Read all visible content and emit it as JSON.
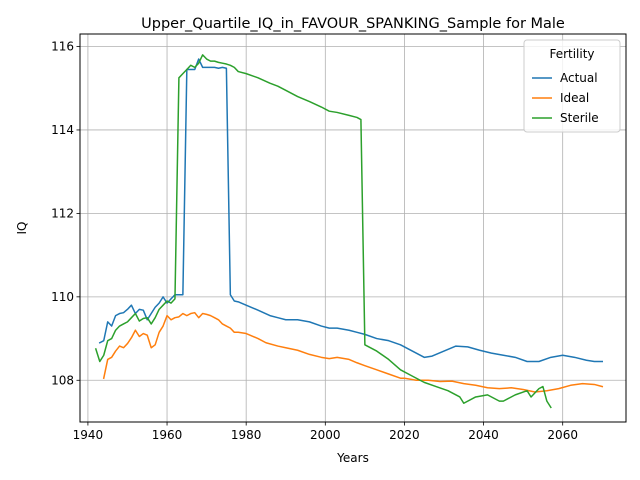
{
  "chart_data": {
    "type": "line",
    "title": "Upper_Quartile_IQ_in_FAVOUR_SPANKING_Sample for Male",
    "xlabel": "Years",
    "ylabel": "IQ",
    "xlim": [
      1938,
      2076
    ],
    "ylim": [
      107.0,
      116.3
    ],
    "xticks": [
      1940,
      1960,
      1980,
      2000,
      2020,
      2040,
      2060
    ],
    "yticks": [
      108,
      110,
      112,
      114,
      116
    ],
    "xtick_labels": [
      "1940",
      "1960",
      "1980",
      "2000",
      "2020",
      "2040",
      "2060"
    ],
    "ytick_labels": [
      "108",
      "110",
      "112",
      "114",
      "116"
    ],
    "grid": true,
    "legend": {
      "title": "Fertility",
      "position": "top-right"
    },
    "series": [
      {
        "name": "Actual",
        "color": "#1f77b4",
        "x": [
          1943,
          1944,
          1945,
          1946,
          1947,
          1948,
          1949,
          1950,
          1951,
          1952,
          1953,
          1954,
          1955,
          1956,
          1957,
          1958,
          1959,
          1960,
          1961,
          1962,
          1963,
          1964,
          1965,
          1966,
          1967,
          1968,
          1969,
          1970,
          1971,
          1972,
          1973,
          1974,
          1975,
          1976,
          1977,
          1978,
          1980,
          1983,
          1986,
          1988,
          1990,
          1993,
          1996,
          1999,
          2001,
          2003,
          2006,
          2008,
          2010,
          2013,
          2016,
          2019,
          2022,
          2025,
          2027,
          2030,
          2033,
          2036,
          2039,
          2042,
          2045,
          2048,
          2051,
          2054,
          2057,
          2060,
          2063,
          2066,
          2068,
          2070
        ],
        "y": [
          108.9,
          108.95,
          109.4,
          109.3,
          109.55,
          109.6,
          109.62,
          109.7,
          109.8,
          109.6,
          109.7,
          109.68,
          109.45,
          109.6,
          109.75,
          109.85,
          110.0,
          109.85,
          109.95,
          110.05,
          110.05,
          110.05,
          115.45,
          115.45,
          115.45,
          115.7,
          115.5,
          115.5,
          115.5,
          115.5,
          115.48,
          115.5,
          115.48,
          110.05,
          109.9,
          109.88,
          109.8,
          109.68,
          109.55,
          109.5,
          109.45,
          109.45,
          109.4,
          109.3,
          109.25,
          109.25,
          109.2,
          109.15,
          109.1,
          109.0,
          108.95,
          108.85,
          108.7,
          108.55,
          108.58,
          108.7,
          108.82,
          108.8,
          108.72,
          108.65,
          108.6,
          108.55,
          108.45,
          108.45,
          108.55,
          108.6,
          108.55,
          108.48,
          108.45,
          108.45
        ]
      },
      {
        "name": "Ideal",
        "color": "#ff7f0e",
        "x": [
          1944,
          1945,
          1946,
          1947,
          1948,
          1949,
          1950,
          1951,
          1952,
          1953,
          1954,
          1955,
          1956,
          1957,
          1958,
          1959,
          1960,
          1961,
          1962,
          1963,
          1964,
          1965,
          1966,
          1967,
          1968,
          1969,
          1970,
          1971,
          1972,
          1973,
          1974,
          1975,
          1976,
          1977,
          1978,
          1980,
          1983,
          1985,
          1988,
          1990,
          1993,
          1996,
          1999,
          2001,
          2003,
          2006,
          2008,
          2010,
          2013,
          2016,
          2019,
          2020,
          2023,
          2026,
          2029,
          2032,
          2035,
          2038,
          2041,
          2044,
          2047,
          2050,
          2053,
          2056,
          2059,
          2062,
          2065,
          2068,
          2070
        ],
        "y": [
          108.05,
          108.5,
          108.55,
          108.7,
          108.82,
          108.78,
          108.88,
          109.02,
          109.2,
          109.05,
          109.12,
          109.08,
          108.78,
          108.85,
          109.15,
          109.3,
          109.55,
          109.45,
          109.5,
          109.52,
          109.6,
          109.55,
          109.6,
          109.62,
          109.5,
          109.6,
          109.58,
          109.55,
          109.5,
          109.45,
          109.35,
          109.3,
          109.25,
          109.15,
          109.15,
          109.12,
          109.0,
          108.9,
          108.82,
          108.78,
          108.72,
          108.62,
          108.55,
          108.52,
          108.55,
          108.5,
          108.42,
          108.35,
          108.25,
          108.15,
          108.05,
          108.05,
          108.0,
          108.0,
          107.97,
          107.98,
          107.92,
          107.88,
          107.82,
          107.8,
          107.82,
          107.78,
          107.72,
          107.75,
          107.8,
          107.88,
          107.92,
          107.9,
          107.85
        ]
      },
      {
        "name": "Sterile",
        "color": "#2ca02c",
        "x": [
          1942,
          1943,
          1944,
          1945,
          1946,
          1947,
          1948,
          1949,
          1950,
          1951,
          1952,
          1953,
          1954,
          1955,
          1956,
          1957,
          1958,
          1959,
          1960,
          1961,
          1962,
          1963,
          1964,
          1965,
          1966,
          1967,
          1968,
          1969,
          1970,
          1971,
          1972,
          1973,
          1974,
          1975,
          1976,
          1977,
          1978,
          1980,
          1983,
          1986,
          1988,
          1990,
          1993,
          1996,
          1999,
          2001,
          2003,
          2006,
          2008,
          2009,
          2010,
          2013,
          2016,
          2019,
          2022,
          2025,
          2028,
          2031,
          2034,
          2035,
          2038,
          2041,
          2044,
          2045,
          2048,
          2051,
          2052,
          2054,
          2055,
          2056,
          2057
        ],
        "y": [
          108.75,
          108.45,
          108.6,
          108.95,
          109.0,
          109.2,
          109.3,
          109.35,
          109.4,
          109.5,
          109.6,
          109.42,
          109.48,
          109.5,
          109.35,
          109.5,
          109.7,
          109.8,
          109.9,
          109.85,
          109.95,
          115.25,
          115.35,
          115.45,
          115.55,
          115.5,
          115.6,
          115.8,
          115.7,
          115.65,
          115.65,
          115.62,
          115.6,
          115.58,
          115.55,
          115.5,
          115.4,
          115.35,
          115.25,
          115.12,
          115.05,
          114.95,
          114.8,
          114.68,
          114.55,
          114.45,
          114.42,
          114.35,
          114.3,
          114.25,
          108.85,
          108.7,
          108.5,
          108.25,
          108.1,
          107.95,
          107.85,
          107.75,
          107.6,
          107.45,
          107.6,
          107.65,
          107.5,
          107.5,
          107.65,
          107.75,
          107.6,
          107.8,
          107.85,
          107.5,
          107.35
        ]
      }
    ]
  }
}
